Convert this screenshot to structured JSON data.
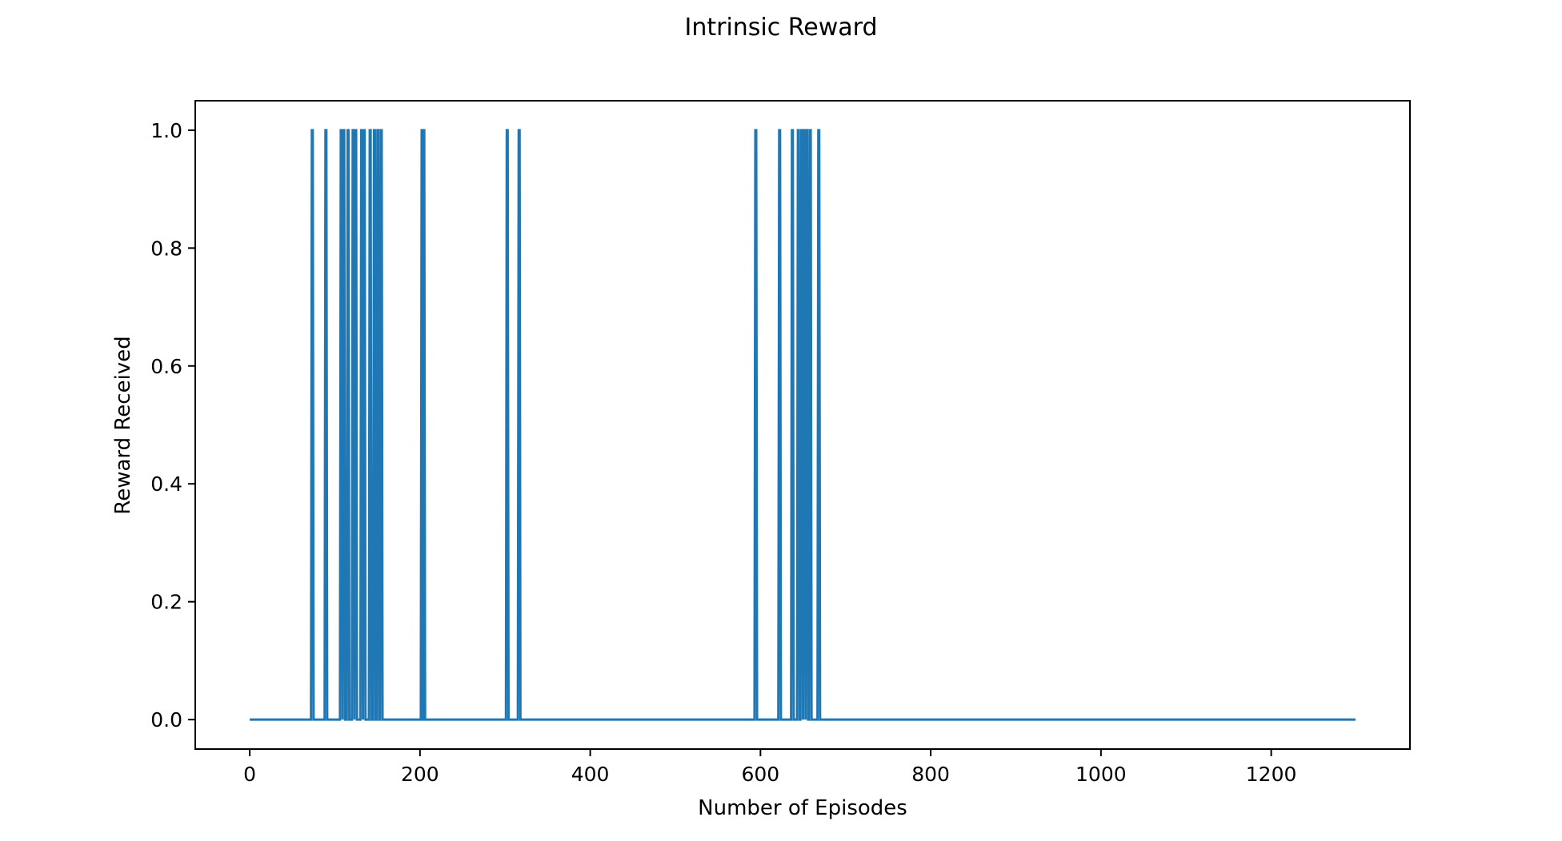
{
  "chart_data": {
    "type": "line",
    "title": "Intrinsic Reward",
    "xlabel": "Number of Episodes",
    "ylabel": "Reward Received",
    "xlim": [
      -64,
      1363
    ],
    "ylim": [
      -0.05,
      1.05
    ],
    "xticks": [
      0,
      200,
      400,
      600,
      800,
      1000,
      1200
    ],
    "xtick_labels": [
      "0",
      "200",
      "400",
      "600",
      "800",
      "1000",
      "1200"
    ],
    "yticks": [
      0.0,
      0.2,
      0.4,
      0.6,
      0.8,
      1.0
    ],
    "ytick_labels": [
      "0.0",
      "0.2",
      "0.4",
      "0.6",
      "0.8",
      "1.0"
    ],
    "grid": false,
    "legend": "none",
    "baseline": 0,
    "x_range": [
      0,
      1299
    ],
    "series": [
      {
        "color": "#1f77b4",
        "spikes": [
          {
            "x": [
              73,
              74
            ],
            "y": 1
          },
          {
            "x": [
              89,
              90
            ],
            "y": 1
          },
          {
            "x": [
              107,
              108
            ],
            "y": 1
          },
          {
            "x": [
              110,
              111
            ],
            "y": 1
          },
          {
            "x": [
              115,
              116
            ],
            "y": 1
          },
          {
            "x": [
              121,
              122
            ],
            "y": 1
          },
          {
            "x": [
              124,
              125
            ],
            "y": 1
          },
          {
            "x": [
              131,
              132
            ],
            "y": 1
          },
          {
            "x": [
              134,
              135
            ],
            "y": 1
          },
          {
            "x": [
              141,
              142
            ],
            "y": 1
          },
          {
            "x": [
              146,
              147
            ],
            "y": 1
          },
          {
            "x": [
              150,
              151
            ],
            "y": 1
          },
          {
            "x": [
              154,
              155
            ],
            "y": 1
          },
          {
            "x": [
              202,
              203
            ],
            "y": 1
          },
          {
            "x": [
              204,
              205
            ],
            "y": 1
          },
          {
            "x": [
              302,
              303
            ],
            "y": 1
          },
          {
            "x": [
              316,
              317
            ],
            "y": 1
          },
          {
            "x": [
              594,
              595
            ],
            "y": 1
          },
          {
            "x": [
              622,
              623
            ],
            "y": 1
          },
          {
            "x": [
              637,
              638
            ],
            "y": 1
          },
          {
            "x": [
              644,
              645
            ],
            "y": 1
          },
          {
            "x": [
              648,
              649
            ],
            "y": 1
          },
          {
            "x": [
              651,
              652
            ],
            "y": 1
          },
          {
            "x": [
              654,
              655
            ],
            "y": 1
          },
          {
            "x": [
              658,
              659
            ],
            "y": 1
          },
          {
            "x": [
              668,
              669
            ],
            "y": 1
          }
        ]
      }
    ]
  }
}
